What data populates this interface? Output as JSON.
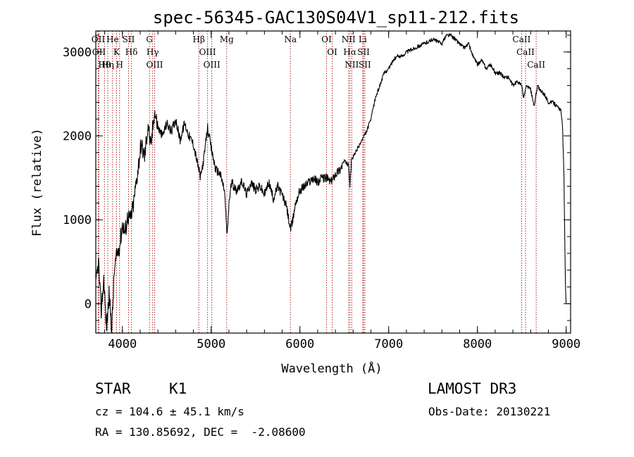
{
  "chart_data": {
    "type": "line",
    "title": "spec-56345-GAC130S04V1_sp11-212.fits",
    "xlabel": "Wavelength (Å)",
    "ylabel": "Flux (relative)",
    "xlim": [
      3700,
      9050
    ],
    "ylim": [
      -350,
      3250
    ],
    "xticks": [
      4000,
      5000,
      6000,
      7000,
      8000,
      9000
    ],
    "yticks": [
      0,
      1000,
      2000,
      3000
    ],
    "xtick_labels": [
      "4000",
      "5000",
      "6000",
      "7000",
      "8000",
      "9000"
    ],
    "ytick_labels": [
      "0",
      "1000",
      "2000",
      "3000"
    ],
    "series": [
      {
        "name": "flux",
        "x": [
          3700,
          3730,
          3760,
          3790,
          3820,
          3850,
          3880,
          3910,
          3940,
          3970,
          4000,
          4030,
          4060,
          4090,
          4120,
          4150,
          4180,
          4210,
          4250,
          4290,
          4320,
          4360,
          4400,
          4450,
          4500,
          4550,
          4600,
          4650,
          4700,
          4750,
          4800,
          4850,
          4880,
          4920,
          4960,
          5000,
          5050,
          5100,
          5150,
          5180,
          5200,
          5230,
          5280,
          5350,
          5400,
          5450,
          5500,
          5550,
          5600,
          5650,
          5700,
          5750,
          5800,
          5850,
          5890,
          5900,
          5920,
          5950,
          6000,
          6050,
          6100,
          6150,
          6200,
          6250,
          6300,
          6350,
          6400,
          6450,
          6500,
          6550,
          6563,
          6580,
          6600,
          6650,
          6700,
          6750,
          6800,
          6850,
          6900,
          6950,
          7000,
          7050,
          7100,
          7150,
          7200,
          7300,
          7400,
          7500,
          7600,
          7650,
          7700,
          7750,
          7800,
          7850,
          7900,
          7950,
          8000,
          8050,
          8100,
          8150,
          8200,
          8250,
          8300,
          8350,
          8400,
          8450,
          8500,
          8520,
          8540,
          8560,
          8600,
          8640,
          8660,
          8680,
          8700,
          8750,
          8800,
          8850,
          8900,
          8940,
          8960,
          8975,
          8985,
          8992,
          9000
        ],
        "y": [
          200,
          500,
          -100,
          300,
          -300,
          100,
          -300,
          400,
          600,
          700,
          950,
          850,
          1050,
          1000,
          1150,
          1400,
          1650,
          1900,
          1750,
          2150,
          1850,
          2300,
          2100,
          2000,
          2150,
          2050,
          2200,
          1950,
          2150,
          2000,
          1900,
          1650,
          1500,
          1750,
          2100,
          1850,
          1600,
          1550,
          1350,
          800,
          1200,
          1450,
          1350,
          1450,
          1300,
          1450,
          1350,
          1400,
          1300,
          1450,
          1250,
          1400,
          1300,
          1150,
          900,
          900,
          1000,
          1200,
          1350,
          1400,
          1450,
          1500,
          1450,
          1500,
          1500,
          1450,
          1550,
          1600,
          1700,
          1650,
          1400,
          1700,
          1750,
          1850,
          1950,
          2050,
          2200,
          2450,
          2600,
          2750,
          2800,
          2900,
          2950,
          2950,
          3000,
          3050,
          3100,
          3150,
          3100,
          3200,
          3200,
          3150,
          3100,
          3050,
          3100,
          2950,
          2850,
          2900,
          2800,
          2850,
          2750,
          2750,
          2700,
          2700,
          2600,
          2650,
          2600,
          2450,
          2550,
          2600,
          2550,
          2350,
          2500,
          2600,
          2550,
          2500,
          2400,
          2400,
          2350,
          2300,
          2100,
          1500,
          700,
          200,
          0
        ]
      }
    ],
    "line_labels": [
      {
        "label": "Hθ",
        "x": 3798
      },
      {
        "label": "OII",
        "x": 3727
      },
      {
        "label": "OII",
        "x": 3735
      },
      {
        "label": "Hη",
        "x": 3835
      },
      {
        "label": "He",
        "x": 3889
      },
      {
        "label": "K",
        "x": 3934
      },
      {
        "label": "SII",
        "x": 4069
      },
      {
        "label": "H",
        "x": 3968
      },
      {
        "label": "Hδ",
        "x": 4102
      },
      {
        "label": "OIII",
        "x": 4363
      },
      {
        "label": "Hγ",
        "x": 4341
      },
      {
        "label": "G",
        "x": 4305
      },
      {
        "label": "Hβ",
        "x": 4861
      },
      {
        "label": "OIII",
        "x": 5007
      },
      {
        "label": "OIII",
        "x": 4959
      },
      {
        "label": "Mg",
        "x": 5175
      },
      {
        "label": "Na",
        "x": 5893
      },
      {
        "label": "OI",
        "x": 6300
      },
      {
        "label": "OI",
        "x": 6364
      },
      {
        "label": "Hα",
        "x": 6563
      },
      {
        "label": "NII",
        "x": 6548
      },
      {
        "label": "NII",
        "x": 6584
      },
      {
        "label": "SII",
        "x": 6717
      },
      {
        "label": "SII",
        "x": 6731
      },
      {
        "label": "Li",
        "x": 6708
      },
      {
        "label": "CaII",
        "x": 8498
      },
      {
        "label": "CaII",
        "x": 8542
      },
      {
        "label": "CaII",
        "x": 8662
      }
    ],
    "line_color": "#b22222",
    "curve_color": "#000000"
  },
  "info": {
    "class": "STAR",
    "subclass": "K1",
    "survey": "LAMOST DR3",
    "redshift": "cz = 104.6 ± 45.1 km/s",
    "obsdate": "Obs-Date: 20130221",
    "coords": "RA = 130.85692, DEC =  -2.08600"
  }
}
